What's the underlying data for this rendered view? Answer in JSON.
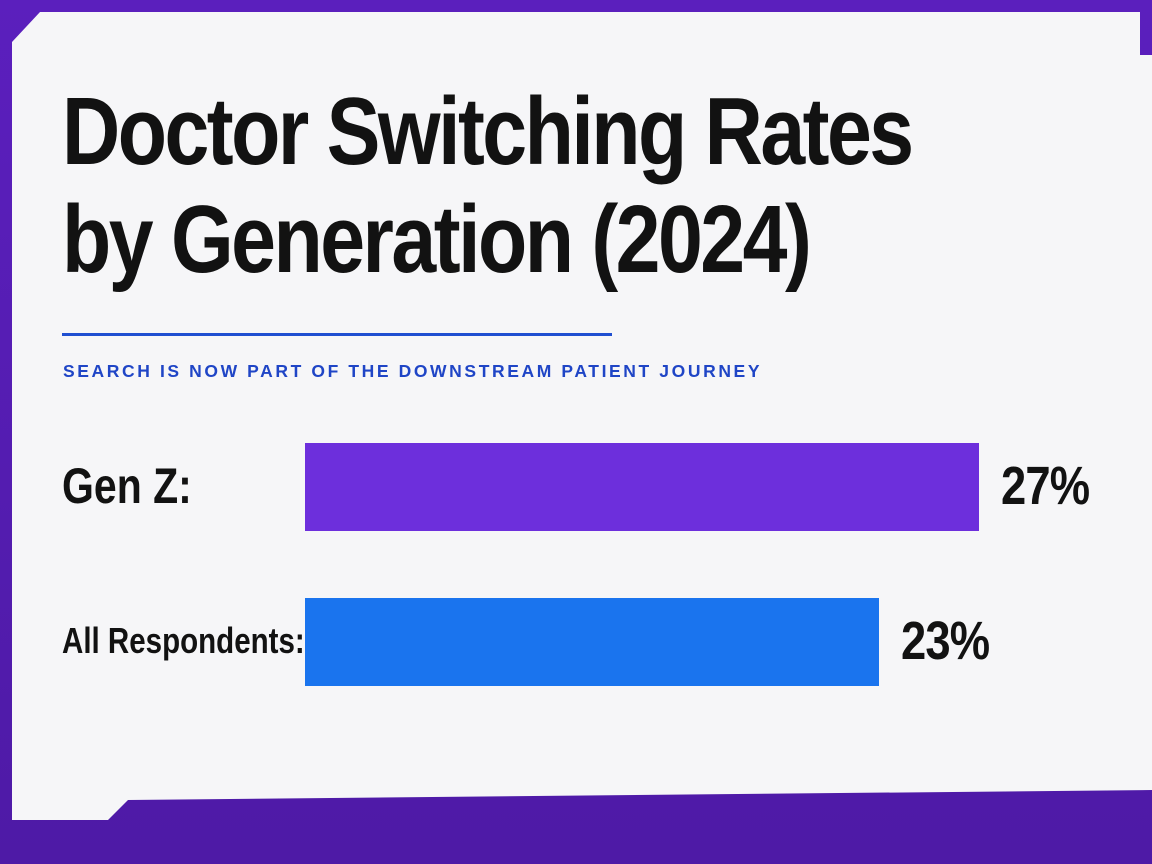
{
  "chart_data": {
    "type": "bar",
    "orientation": "horizontal",
    "title": "Doctor Switching Rates by Generation (2024)",
    "title_lines": [
      "Doctor Switching Rates",
      "by Generation (2024)"
    ],
    "subtitle": "SEARCH IS NOW PART OF THE DOWNSTREAM PATIENT JOURNEY",
    "categories": [
      "Gen Z:",
      "All Respondents:"
    ],
    "values": [
      27,
      23
    ],
    "value_labels": [
      "27%",
      "23%"
    ],
    "unit": "%",
    "xlim": [
      0,
      27
    ],
    "colors": [
      "#6d2fdc",
      "#1a74ee"
    ],
    "grid": false,
    "legend": "none"
  },
  "theme": {
    "frame_color": "#5a1fb8",
    "panel_color": "#f6f6f8",
    "text_color": "#121212",
    "accent_color": "#1f45c6"
  }
}
